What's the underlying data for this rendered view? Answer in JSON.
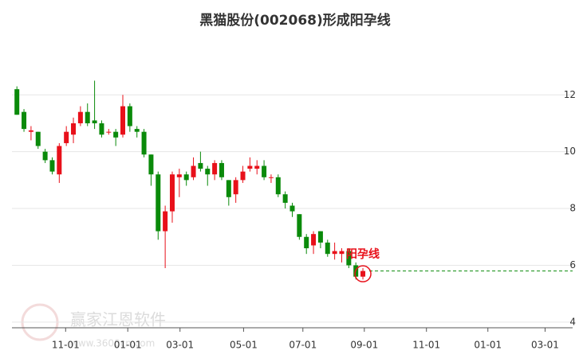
{
  "chart_data": {
    "type": "candlestick",
    "title": "黑猫股份(002068)形成阳孕线",
    "annotation": "阳孕线",
    "watermark": "赢家江恩软件",
    "watermark_url": "www.3600cn.com",
    "x": [
      0,
      1,
      2,
      3,
      4,
      5,
      6,
      7,
      8,
      9,
      10,
      11,
      12,
      13,
      14,
      15,
      16,
      17,
      18,
      19,
      20,
      21,
      22,
      23,
      24,
      25,
      26,
      27,
      28,
      29,
      30,
      31,
      32,
      33,
      34,
      35,
      36,
      37,
      38,
      39,
      40,
      41,
      42,
      43,
      44,
      45,
      46,
      47,
      48,
      49
    ],
    "open": [
      12.2,
      11.4,
      10.7,
      10.7,
      10.0,
      9.7,
      9.2,
      10.3,
      10.6,
      11.0,
      11.4,
      11.1,
      11.0,
      10.7,
      10.7,
      10.6,
      11.6,
      10.8,
      10.7,
      9.9,
      9.2,
      7.2,
      7.9,
      9.1,
      9.2,
      9.1,
      9.6,
      9.4,
      9.2,
      9.6,
      9.0,
      8.5,
      9.0,
      9.4,
      9.4,
      9.5,
      9.1,
      9.1,
      8.5,
      8.1,
      7.8,
      7.0,
      6.7,
      7.2,
      6.8,
      6.4,
      6.4,
      6.5,
      6.0,
      5.6
    ],
    "high": [
      12.3,
      11.5,
      10.9,
      10.7,
      10.1,
      9.8,
      10.3,
      10.9,
      11.2,
      11.6,
      11.7,
      12.5,
      11.1,
      10.8,
      10.8,
      12.0,
      11.7,
      10.9,
      10.8,
      9.9,
      9.3,
      8.1,
      9.3,
      9.4,
      9.3,
      9.8,
      10.0,
      9.5,
      9.7,
      9.7,
      9.0,
      9.1,
      9.5,
      9.8,
      9.7,
      9.7,
      9.2,
      9.2,
      8.6,
      8.2,
      7.8,
      7.1,
      7.2,
      7.2,
      6.9,
      6.8,
      6.6,
      6.6,
      6.1,
      5.9
    ],
    "low": [
      11.3,
      10.7,
      10.4,
      10.1,
      9.6,
      9.2,
      8.9,
      10.2,
      10.3,
      10.9,
      10.9,
      10.8,
      10.5,
      10.6,
      10.2,
      10.5,
      10.7,
      10.5,
      9.8,
      8.8,
      6.9,
      5.9,
      7.5,
      8.4,
      8.8,
      9.0,
      9.3,
      8.8,
      9.0,
      9.0,
      8.1,
      8.2,
      8.9,
      9.3,
      9.2,
      9.0,
      8.9,
      8.4,
      8.0,
      7.7,
      6.9,
      6.4,
      6.4,
      6.6,
      6.3,
      6.2,
      6.1,
      5.9,
      5.5,
      5.5
    ],
    "close": [
      11.3,
      10.8,
      10.75,
      10.2,
      9.7,
      9.3,
      10.2,
      10.7,
      11.0,
      11.4,
      11.0,
      11.0,
      10.6,
      10.7,
      10.5,
      11.6,
      10.9,
      10.7,
      9.9,
      9.2,
      7.2,
      7.9,
      9.2,
      9.2,
      9.0,
      9.5,
      9.4,
      9.2,
      9.6,
      9.1,
      8.4,
      9.0,
      9.3,
      9.5,
      9.5,
      9.1,
      9.1,
      8.5,
      8.2,
      7.9,
      7.0,
      6.6,
      7.1,
      6.8,
      6.4,
      6.5,
      6.5,
      6.0,
      5.6,
      5.8
    ],
    "up_color": "#e8101a",
    "down_color": "#0a8a0a",
    "xlim": [
      -0.7,
      78.7
    ],
    "xticks": [
      {
        "value": 6.9,
        "label": "11-01"
      },
      {
        "value": 15.7,
        "label": "01-01"
      },
      {
        "value": 23.1,
        "label": "03-01"
      },
      {
        "value": 32.1,
        "label": "05-01"
      },
      {
        "value": 40.5,
        "label": "07-01"
      },
      {
        "value": 49.2,
        "label": "09-01"
      },
      {
        "value": 58.0,
        "label": "11-01"
      },
      {
        "value": 66.7,
        "label": "01-01"
      },
      {
        "value": 74.8,
        "label": "03-01"
      }
    ],
    "ylim": [
      3.8,
      13.8
    ],
    "yticks": [
      4,
      6,
      8,
      10,
      12
    ],
    "grid": true
  }
}
